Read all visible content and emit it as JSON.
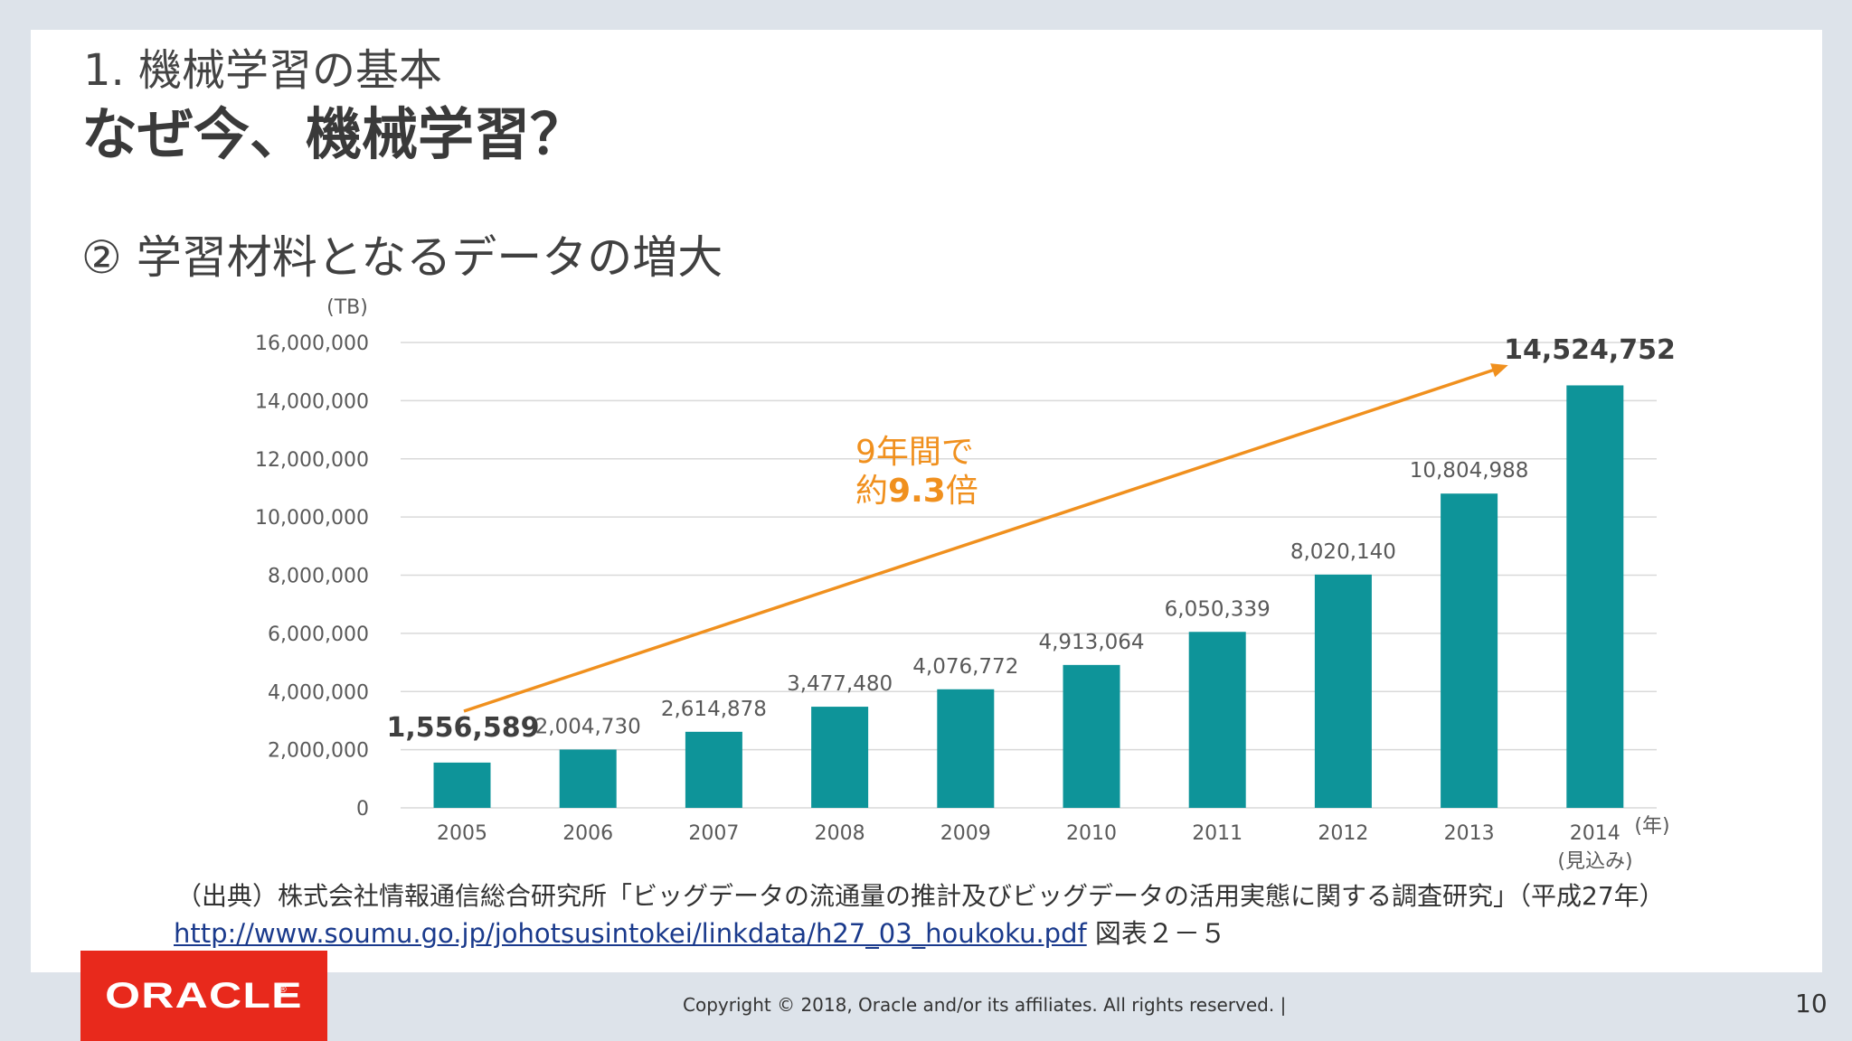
{
  "slide": {
    "section_title": "1. 機械学習の基本",
    "main_title": "なぜ今、機械学習？",
    "subtitle": "② 学習材料となるデータの増大",
    "source_line1": "（出典）株式会社情報通信総合研究所「ビッグデータの流通量の推計及びビッグデータの活用実態に関する調査研究」（平成27年）",
    "source_url": "http://www.soumu.go.jp/johotsusintokei/linkdata/h27_03_houkoku.pdf",
    "source_suffix": " 図表２－５",
    "copyright": "Copyright © 2018, Oracle and/or its affiliates. All rights reserved.  |",
    "page_number": "10",
    "logo_text": "ORACLE",
    "logo_reg": "®"
  },
  "chart_data": {
    "type": "bar",
    "categories": [
      "2005",
      "2006",
      "2007",
      "2008",
      "2009",
      "2010",
      "2011",
      "2012",
      "2013",
      "2014"
    ],
    "category_note": "(見込み)",
    "values": [
      1556589,
      2004730,
      2614878,
      3477480,
      4076772,
      4913064,
      6050339,
      8020140,
      10804988,
      14524752
    ],
    "data_labels": [
      "1,556,589",
      "2,004,730",
      "2,614,878",
      "3,477,480",
      "4,076,772",
      "4,913,064",
      "6,050,339",
      "8,020,140",
      "10,804,988",
      "14,524,752"
    ],
    "y_ticks": [
      "0",
      "2,000,000",
      "4,000,000",
      "6,000,000",
      "8,000,000",
      "10,000,000",
      "12,000,000",
      "14,000,000",
      "16,000,000"
    ],
    "ylim": [
      0,
      16000000
    ],
    "ylabel": "(TB)",
    "xlabel": "(年)",
    "grid": true,
    "bar_color": "#0e9499",
    "annotation": {
      "line1": "9年間で",
      "line2_prefix": "約",
      "line2_bold": "9.3",
      "line2_suffix": "倍",
      "color": "#f0901e"
    }
  }
}
